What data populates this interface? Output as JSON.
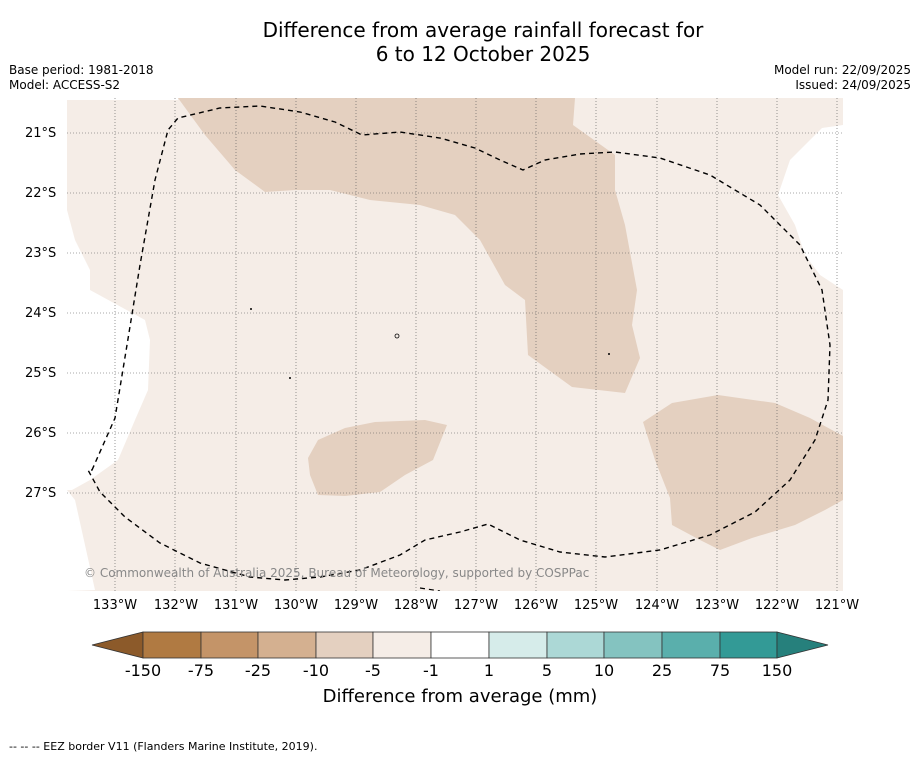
{
  "title": {
    "line1": "Difference from average rainfall forecast for",
    "line2": "6 to 12 October 2025"
  },
  "meta": {
    "base_period": "Base period: 1981-2018",
    "model": "Model: ACCESS-S2",
    "model_run": "Model run: 22/09/2025",
    "issued": "Issued: 24/09/2025"
  },
  "map": {
    "lat_labels": [
      "21°S",
      "22°S",
      "23°S",
      "24°S",
      "25°S",
      "26°S",
      "27°S"
    ],
    "lon_labels": [
      "133°W",
      "132°W",
      "131°W",
      "130°W",
      "129°W",
      "128°W",
      "127°W",
      "126°W",
      "125°W",
      "124°W",
      "123°W",
      "122°W",
      "121°W"
    ],
    "copyright": "© Commonwealth of Australia 2025, Bureau of Meteorology, supported by COSPPac",
    "colors": {
      "light_dry": "#f5ede7",
      "medium_dry": "#e4d0c0",
      "land_border": "#000000"
    }
  },
  "colorbar": {
    "labels": [
      "-150",
      "-75",
      "-25",
      "-10",
      "-5",
      "-1",
      "1",
      "5",
      "10",
      "25",
      "75",
      "150"
    ],
    "colors": [
      "#8c5a2a",
      "#b07a42",
      "#c49468",
      "#d4b090",
      "#e4d0c0",
      "#f5ede7",
      "#ffffff",
      "#d6ecea",
      "#acd8d6",
      "#84c3c0",
      "#5aafac",
      "#339a96",
      "#26807c"
    ],
    "title": "Difference from average (mm)"
  },
  "footnote": "--  --  -- EEZ border V11 (Flanders Marine Institute, 2019)."
}
